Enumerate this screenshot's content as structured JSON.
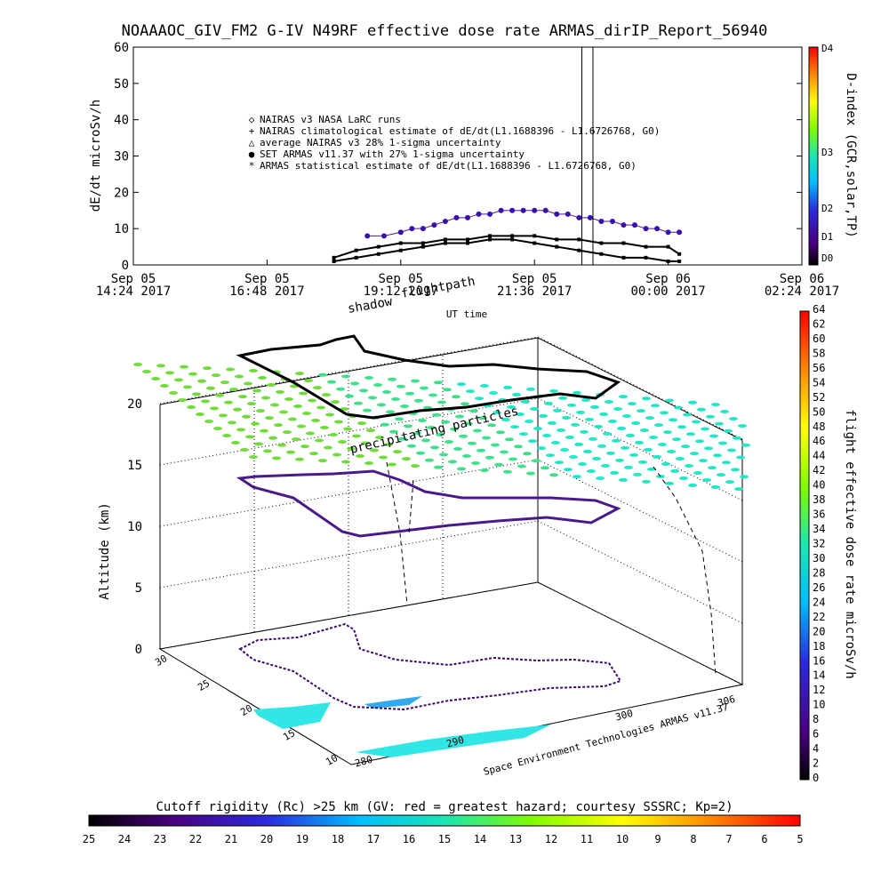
{
  "title": "NOAAAOC_GIV_FM2 G-IV    N49RF   effective dose rate ARMAS_dirIP_Report_56940",
  "chart_data": [
    {
      "type": "scatter",
      "ylabel": "dE/dt microSv/h",
      "xlabel": "UT time",
      "ylim": [
        0,
        60
      ],
      "yticks": [
        "0",
        "10",
        "20",
        "30",
        "40",
        "50",
        "60"
      ],
      "xticks": [
        {
          "date": "Sep 05",
          "time": "14:24 2017"
        },
        {
          "date": "Sep 05",
          "time": "16:48 2017"
        },
        {
          "date": "Sep 05",
          "time": "19:12 2017"
        },
        {
          "date": "Sep 05",
          "time": "21:36 2017"
        },
        {
          "date": "Sep 06",
          "time": "00:00 2017"
        },
        {
          "date": "Sep 06",
          "time": "02:24 2017"
        }
      ],
      "xlim_hours": [
        14.4,
        26.4
      ],
      "legend": [
        {
          "symbol": "◇",
          "label": "NAIRAS v3 NASA LaRC runs"
        },
        {
          "symbol": "+",
          "label": "NAIRAS climatological estimate of dE/dt(L1.1688396 - L1.6726768, G0)"
        },
        {
          "symbol": "△",
          "label": "average NAIRAS v3 28% 1-sigma uncertainty"
        },
        {
          "symbol": "●",
          "label": "SET ARMAS v11.37 with 27% 1-sigma uncertainty"
        },
        {
          "symbol": "*",
          "label": "ARMAS statistical estimate of dE/dt(L1.1688396 - L1.6726768, G0)"
        }
      ],
      "right_axis": {
        "label": "D-index (GCR,solar,TP)",
        "ticks": [
          "D0",
          "D1",
          "D2",
          "D3",
          "D4"
        ]
      },
      "series": [
        {
          "name": "SET ARMAS v11.37 with 27% 1-sigma uncertainty",
          "x": [
            18.6,
            18.9,
            19.2,
            19.4,
            19.6,
            19.8,
            20.0,
            20.2,
            20.4,
            20.6,
            20.8,
            21.0,
            21.2,
            21.4,
            21.6,
            21.8,
            22.0,
            22.2,
            22.4,
            22.6,
            22.8,
            23.0,
            23.2,
            23.4,
            23.6,
            23.8,
            24.0,
            24.2
          ],
          "y": [
            8,
            8,
            9,
            10,
            10,
            11,
            12,
            13,
            13,
            14,
            14,
            15,
            15,
            15,
            15,
            15,
            14,
            14,
            13,
            13,
            12,
            12,
            11,
            11,
            10,
            10,
            9,
            9
          ]
        },
        {
          "name": "NAIRAS climatological estimate of dE/dt(L1.1688396 - L1.6726768, G0)",
          "x": [
            18.0,
            18.4,
            18.8,
            19.2,
            19.6,
            20.0,
            20.4,
            20.8,
            21.2,
            21.6,
            22.0,
            22.4,
            22.8,
            23.2,
            23.6,
            24.0,
            24.2
          ],
          "y": [
            2,
            4,
            5,
            6,
            6,
            7,
            7,
            8,
            8,
            8,
            7,
            7,
            6,
            6,
            5,
            5,
            3
          ]
        },
        {
          "name": "ARMAS statistical estimate of dE/dt(L1.1688396 - L1.6726768, G0)",
          "x": [
            18.0,
            18.4,
            18.8,
            19.2,
            19.6,
            20.0,
            20.4,
            20.8,
            21.2,
            21.6,
            22.0,
            22.4,
            22.8,
            23.2,
            23.6,
            24.0,
            24.2
          ],
          "y": [
            1,
            2,
            3,
            4,
            5,
            6,
            6,
            7,
            7,
            6,
            5,
            4,
            3,
            2,
            2,
            1,
            1
          ]
        }
      ]
    },
    {
      "type": "scatter",
      "zlabel": "Altitude (km)",
      "zticks": [
        "0",
        "5",
        "10",
        "15",
        "20"
      ],
      "latitude_ticks": [
        "10",
        "15",
        "20",
        "25",
        "30"
      ],
      "longitude_ticks": [
        "280",
        "290",
        "300",
        "306"
      ],
      "annotations": [
        "flightpath",
        "shadow",
        "precipitating particles"
      ],
      "credit": "Space Environment Technologies ARMAS v11.37",
      "colorbar": {
        "label": "flight effective dose rate microSv/h",
        "ticks": [
          "0",
          "2",
          "4",
          "6",
          "8",
          "10",
          "12",
          "14",
          "16",
          "18",
          "20",
          "22",
          "24",
          "26",
          "28",
          "30",
          "32",
          "34",
          "36",
          "38",
          "40",
          "42",
          "44",
          "46",
          "48",
          "50",
          "52",
          "54",
          "56",
          "58",
          "60",
          "62",
          "64"
        ]
      }
    }
  ],
  "bottom_colorbar": {
    "label": "Cutoff rigidity (Rc) >25 km (GV: red = greatest hazard; courtesy SSSRC; Kp=2)",
    "ticks": [
      "25",
      "24",
      "23",
      "22",
      "21",
      "20",
      "19",
      "18",
      "17",
      "16",
      "15",
      "14",
      "13",
      "12",
      "11",
      "10",
      "9",
      "8",
      "7",
      "6",
      "5"
    ]
  }
}
